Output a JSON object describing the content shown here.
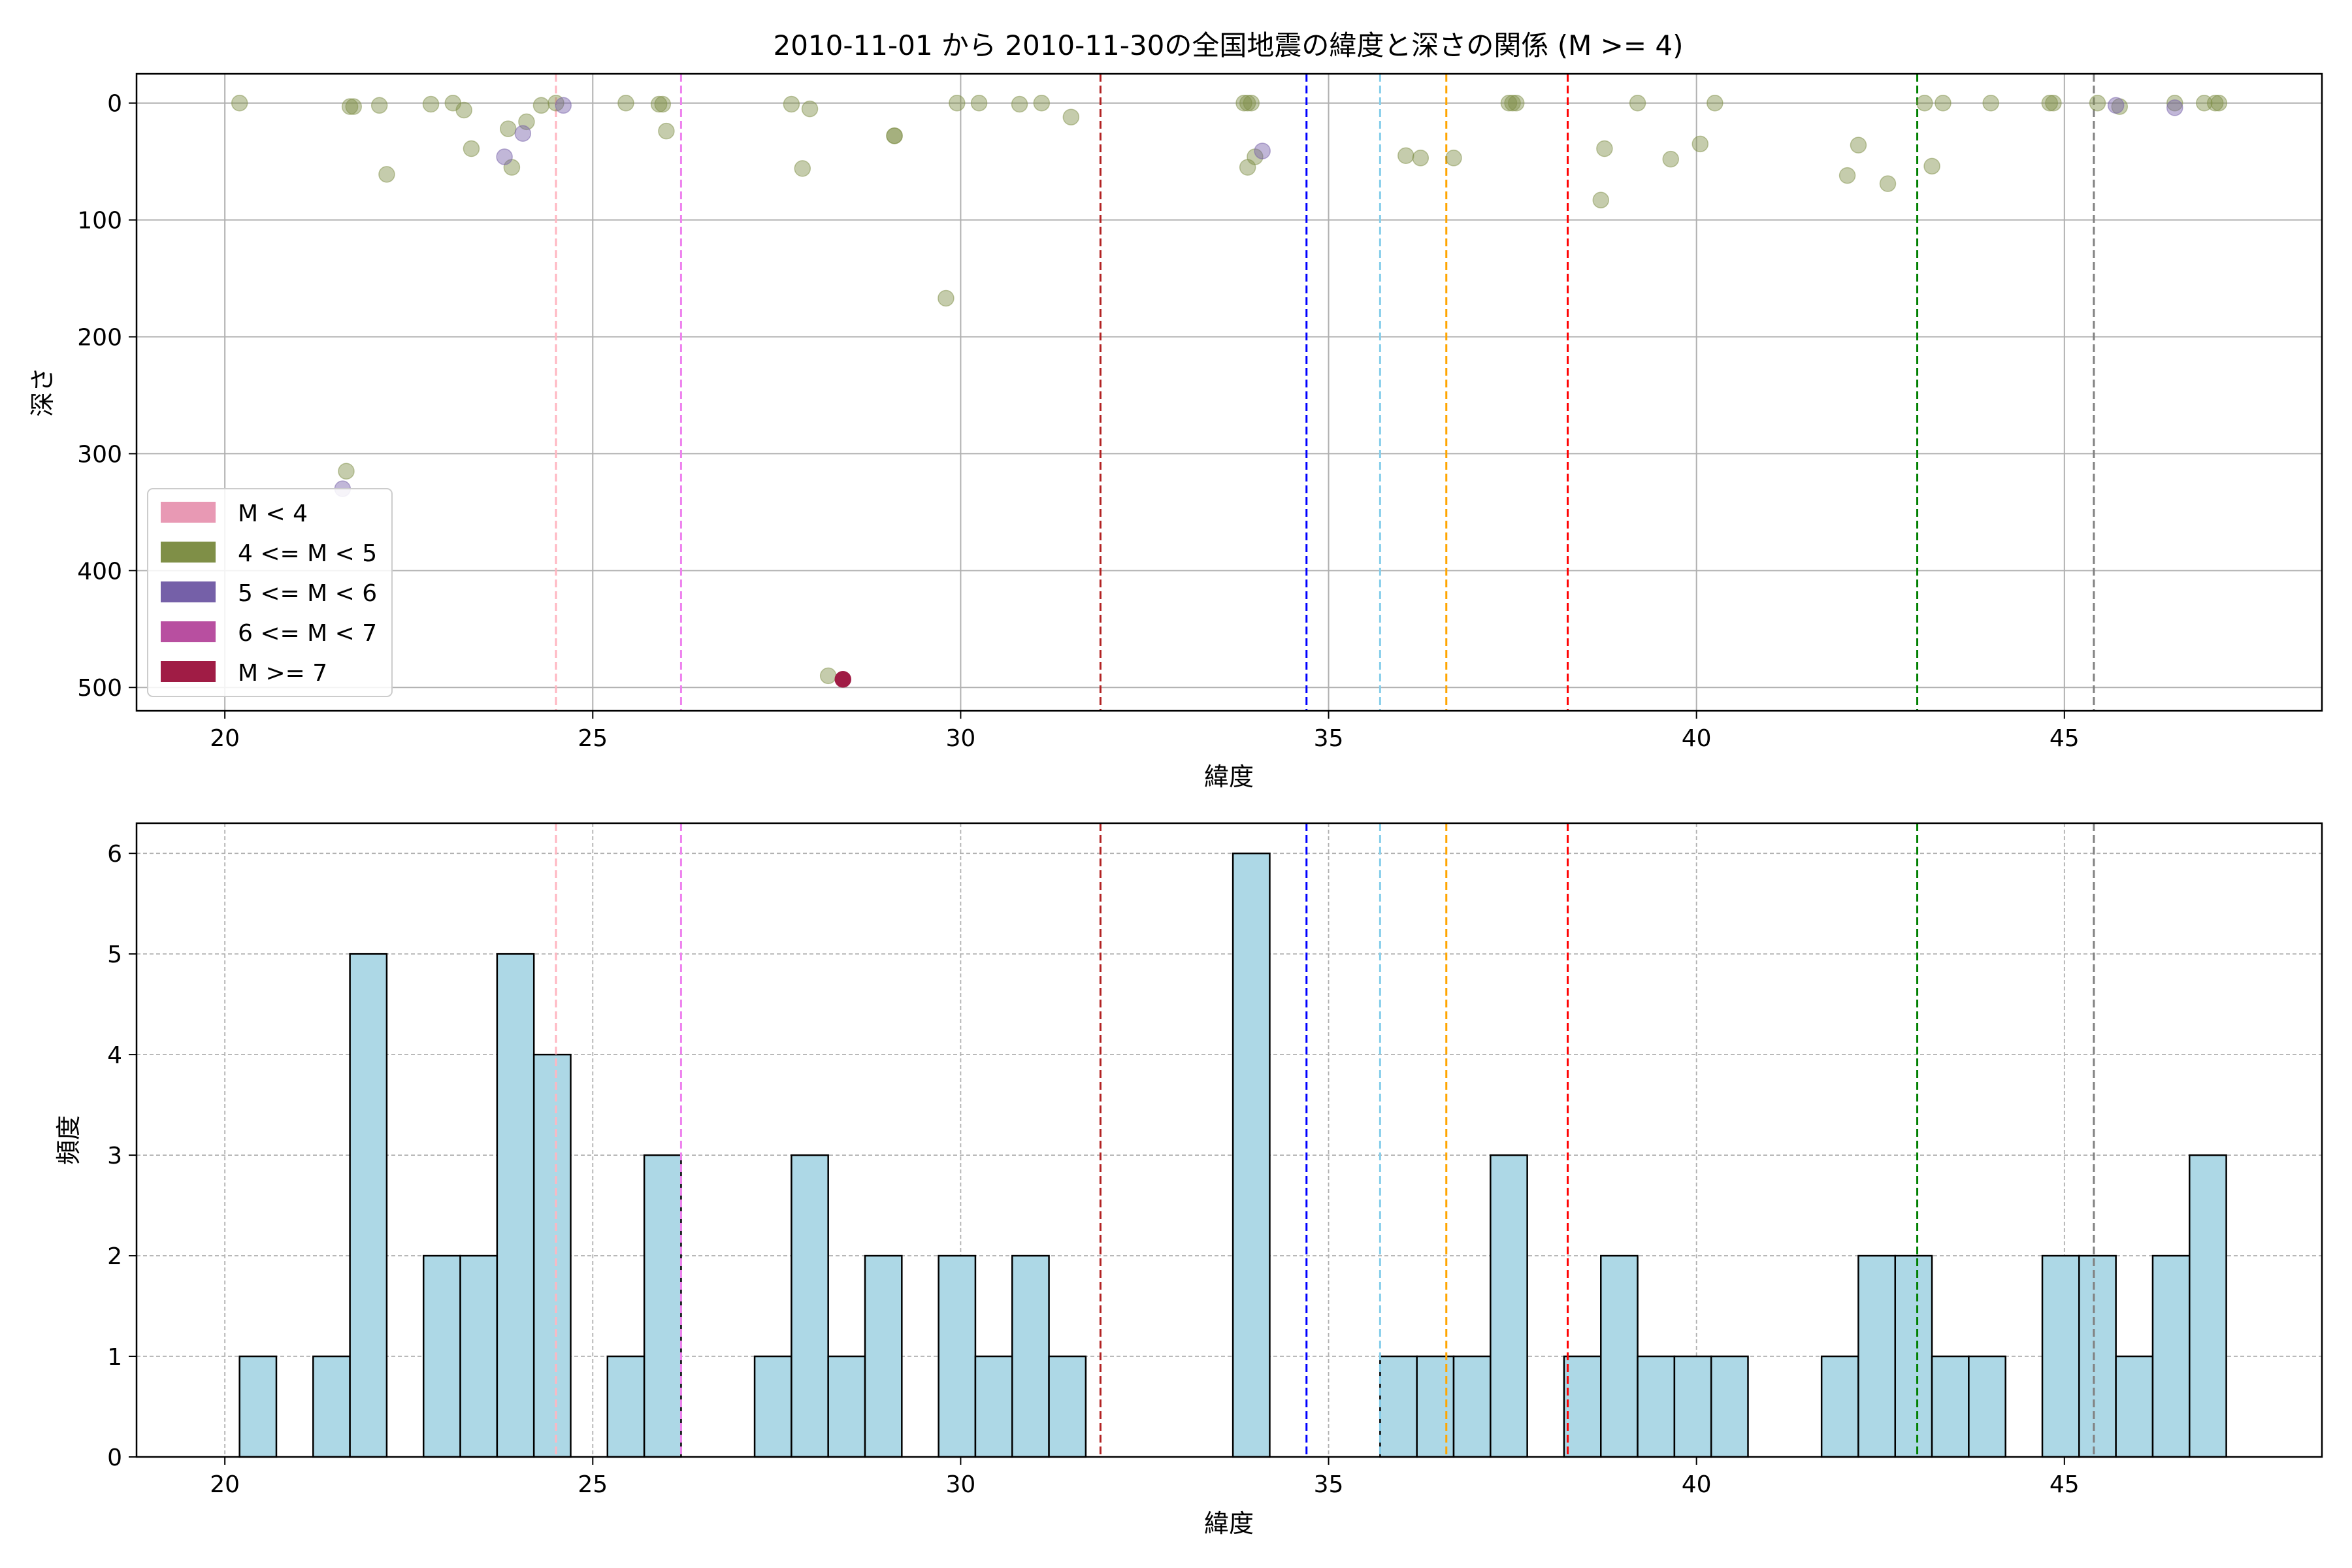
{
  "chart_data": [
    {
      "type": "scatter",
      "title": "2010-11-01 から 2010-11-30の全国地震の緯度と深さの関係 (M >= 4)",
      "xlabel": "緯度",
      "ylabel": "深さ",
      "xlim": [
        18.8,
        48.5
      ],
      "ylim": [
        520,
        -25
      ],
      "y_inverted": true,
      "grid": true,
      "x_ticks": [
        20,
        25,
        30,
        35,
        40,
        45
      ],
      "y_ticks": [
        0,
        100,
        200,
        300,
        400,
        500
      ],
      "legend": {
        "placement": "lower-left",
        "entries": [
          {
            "label": "M < 4",
            "color": "#e899b4"
          },
          {
            "label": "4 <= M < 5",
            "color": "#7f8f47"
          },
          {
            "label": "5 <= M < 6",
            "color": "#7560a8"
          },
          {
            "label": "6 <= M < 7",
            "color": "#b84fa0"
          },
          {
            "label": "M >= 7",
            "color": "#a01c45"
          }
        ]
      },
      "series": [
        {
          "class": "4 <= M < 5",
          "color": "#7f8f47",
          "points": [
            [
              20.2,
              0
            ],
            [
              21.7,
              3
            ],
            [
              21.75,
              3
            ],
            [
              22.1,
              2
            ],
            [
              22.2,
              61
            ],
            [
              22.8,
              1
            ],
            [
              23.1,
              0
            ],
            [
              23.25,
              6
            ],
            [
              23.35,
              39
            ],
            [
              23.85,
              22
            ],
            [
              23.9,
              55
            ],
            [
              24.1,
              16
            ],
            [
              24.3,
              2
            ],
            [
              24.5,
              0
            ],
            [
              25.45,
              0
            ],
            [
              25.9,
              1
            ],
            [
              25.95,
              1
            ],
            [
              26.0,
              24
            ],
            [
              27.7,
              1
            ],
            [
              27.85,
              56
            ],
            [
              27.95,
              5
            ],
            [
              29.1,
              28
            ],
            [
              29.1,
              28
            ],
            [
              29.8,
              167
            ],
            [
              29.95,
              0
            ],
            [
              30.25,
              0
            ],
            [
              30.8,
              1
            ],
            [
              31.1,
              0
            ],
            [
              31.5,
              12
            ],
            [
              33.85,
              0
            ],
            [
              33.9,
              0
            ],
            [
              33.95,
              0
            ],
            [
              33.9,
              55
            ],
            [
              34.0,
              46
            ],
            [
              36.05,
              45
            ],
            [
              36.25,
              47
            ],
            [
              36.7,
              47
            ],
            [
              37.45,
              0
            ],
            [
              37.5,
              0
            ],
            [
              37.55,
              0
            ],
            [
              38.7,
              83
            ],
            [
              38.75,
              39
            ],
            [
              39.2,
              0
            ],
            [
              39.65,
              48
            ],
            [
              40.05,
              35
            ],
            [
              40.25,
              0
            ],
            [
              42.05,
              62
            ],
            [
              42.2,
              36
            ],
            [
              42.6,
              69
            ],
            [
              43.1,
              0
            ],
            [
              43.2,
              54
            ],
            [
              43.35,
              0
            ],
            [
              44.0,
              0
            ],
            [
              44.8,
              0
            ],
            [
              44.85,
              0
            ],
            [
              45.45,
              0
            ],
            [
              45.75,
              3
            ],
            [
              46.5,
              0
            ],
            [
              46.9,
              0
            ],
            [
              47.05,
              0
            ],
            [
              47.1,
              0
            ],
            [
              21.65,
              315
            ],
            [
              28.2,
              490
            ]
          ]
        },
        {
          "class": "5 <= M < 6",
          "color": "#7560a8",
          "points": [
            [
              21.6,
              330
            ],
            [
              23.8,
              46
            ],
            [
              24.05,
              26
            ],
            [
              24.6,
              2
            ],
            [
              34.1,
              41
            ],
            [
              45.7,
              2
            ],
            [
              46.5,
              4
            ]
          ]
        },
        {
          "class": "M >= 7",
          "color": "#a01c45",
          "points": [
            [
              28.4,
              493
            ]
          ]
        }
      ],
      "reference_lines_x": [
        {
          "x": 24.5,
          "color": "#ffb6c1"
        },
        {
          "x": 26.2,
          "color": "#ee82ee"
        },
        {
          "x": 31.9,
          "color": "#b22222"
        },
        {
          "x": 34.7,
          "color": "#0000ff"
        },
        {
          "x": 35.7,
          "color": "#87ceeb"
        },
        {
          "x": 36.6,
          "color": "#ffa500"
        },
        {
          "x": 38.25,
          "color": "#ff0000"
        },
        {
          "x": 43.0,
          "color": "#008000"
        },
        {
          "x": 45.4,
          "color": "#808080"
        }
      ]
    },
    {
      "type": "bar",
      "title": "",
      "xlabel": "緯度",
      "ylabel": "頻度",
      "xlim": [
        18.8,
        48.5
      ],
      "ylim": [
        0,
        6.3
      ],
      "grid": true,
      "x_ticks": [
        20,
        25,
        30,
        35,
        40,
        45
      ],
      "y_ticks": [
        0,
        1,
        2,
        3,
        4,
        5,
        6
      ],
      "bar_color": "#add8e6",
      "bin_width": 0.5,
      "bins": [
        [
          20.2,
          1
        ],
        [
          21.2,
          1
        ],
        [
          21.7,
          5
        ],
        [
          22.7,
          2
        ],
        [
          23.2,
          2
        ],
        [
          23.7,
          5
        ],
        [
          24.2,
          4
        ],
        [
          25.2,
          1
        ],
        [
          25.7,
          3
        ],
        [
          27.2,
          1
        ],
        [
          27.7,
          3
        ],
        [
          28.2,
          1
        ],
        [
          28.7,
          2
        ],
        [
          29.7,
          2
        ],
        [
          30.2,
          1
        ],
        [
          30.7,
          2
        ],
        [
          31.2,
          1
        ],
        [
          33.7,
          6
        ],
        [
          35.7,
          1
        ],
        [
          36.2,
          1
        ],
        [
          36.7,
          1
        ],
        [
          37.2,
          3
        ],
        [
          38.2,
          1
        ],
        [
          38.7,
          2
        ],
        [
          39.2,
          1
        ],
        [
          39.7,
          1
        ],
        [
          40.2,
          1
        ],
        [
          41.7,
          1
        ],
        [
          42.2,
          2
        ],
        [
          42.7,
          2
        ],
        [
          43.2,
          1
        ],
        [
          43.7,
          1
        ],
        [
          44.7,
          2
        ],
        [
          45.2,
          2
        ],
        [
          45.7,
          1
        ],
        [
          46.2,
          2
        ],
        [
          46.7,
          3
        ]
      ],
      "reference_lines_x": [
        {
          "x": 24.5,
          "color": "#ffb6c1"
        },
        {
          "x": 26.2,
          "color": "#ee82ee"
        },
        {
          "x": 31.9,
          "color": "#b22222"
        },
        {
          "x": 34.7,
          "color": "#0000ff"
        },
        {
          "x": 35.7,
          "color": "#87ceeb"
        },
        {
          "x": 36.6,
          "color": "#ffa500"
        },
        {
          "x": 38.25,
          "color": "#ff0000"
        },
        {
          "x": 43.0,
          "color": "#008000"
        },
        {
          "x": 45.4,
          "color": "#808080"
        }
      ]
    }
  ]
}
